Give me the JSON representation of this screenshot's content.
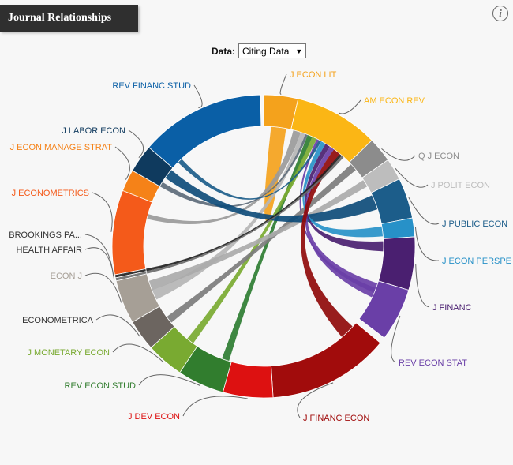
{
  "header": {
    "title": "Journal Relationships",
    "info_icon": "info-icon"
  },
  "controls": {
    "data_label": "Data:",
    "data_selected": "Citing Data"
  },
  "diagram": {
    "segments": [
      {
        "name": "J ECON LIT",
        "color": "#f4a21c",
        "start": 0,
        "end": 11,
        "label_side": "right"
      },
      {
        "name": "AM ECON REV",
        "color": "#fbb615",
        "start": 11,
        "end": 38,
        "label_side": "right"
      },
      {
        "name": "Q J ECON",
        "color": "#8c8c8c",
        "start": 38,
        "end": 46,
        "label_side": "right"
      },
      {
        "name": "J POLIT ECON",
        "color": "#bdbdbd",
        "start": 46,
        "end": 53,
        "label_side": "right"
      },
      {
        "name": "J PUBLIC ECON",
        "color": "#1c5d8a",
        "start": 53,
        "end": 66,
        "label_side": "right"
      },
      {
        "name": "J ECON PERSPE",
        "color": "#2791c8",
        "start": 66,
        "end": 72,
        "label_side": "right"
      },
      {
        "name": "J FINANC",
        "color": "#4a1f70",
        "start": 72,
        "end": 89,
        "label_side": "right"
      },
      {
        "name": "REV ECON STAT",
        "color": "#6a3fa7",
        "start": 89,
        "end": 106,
        "label_side": "right"
      },
      {
        "name": "J FINANC ECON",
        "color": "#a10c0c",
        "start": 108,
        "end": 147,
        "label_side": "right"
      },
      {
        "name": "J DEV ECON",
        "color": "#dd1111",
        "start": 147,
        "end": 163,
        "label_side": "left"
      },
      {
        "name": "REV ECON STUD",
        "color": "#317d2e",
        "start": 163,
        "end": 178,
        "label_side": "left"
      },
      {
        "name": "J MONETARY ECON",
        "color": "#79aa31",
        "start": 178,
        "end": 190,
        "label_side": "left"
      },
      {
        "name": "ECONOMETRICA",
        "color": "#6c6560",
        "start": 190,
        "end": 200,
        "label_side": "left"
      },
      {
        "name": "ECON J",
        "color": "#a69f96",
        "start": 200,
        "end": 214,
        "label_side": "left"
      },
      {
        "name": "HEALTH AFFAIR",
        "color": "#7a7a7a",
        "start": 214,
        "end": 215,
        "label_side": "left"
      },
      {
        "name": "BROOKINGS PA...",
        "color": "#333333",
        "start": 215,
        "end": 216,
        "label_side": "left"
      },
      {
        "name": "J ECONOMETRICS",
        "color": "#f45a1a",
        "start": 216,
        "end": 243,
        "label_side": "left"
      },
      {
        "name": "J ECON MANAGE STRAT",
        "color": "#f58218",
        "start": 243,
        "end": 250,
        "label_side": "left"
      },
      {
        "name": "J LABOR ECON",
        "color": "#0f3a5e",
        "start": 250,
        "end": 259,
        "label_side": "left"
      },
      {
        "name": "REV FINANC STUD",
        "color": "#0a5fa6",
        "start": 259,
        "end": 299,
        "label_side": "left"
      }
    ],
    "chords": [
      {
        "from": "J ECON LIT",
        "color": "#f4a21c",
        "a": [
          3,
          9
        ],
        "b": [
          3,
          9
        ],
        "self": true
      },
      {
        "from": "AM ECON REV",
        "color": "#9a9a9a",
        "a": [
          12,
          15
        ],
        "b": [
          236,
          238
        ]
      },
      {
        "from": "AM ECON REV",
        "color": "#b5b5b5",
        "a": [
          15,
          17
        ],
        "b": [
          203,
          207
        ]
      },
      {
        "from": "AM ECON REV",
        "color": "#5d6b7a",
        "a": [
          17,
          18
        ],
        "b": [
          250,
          252
        ]
      },
      {
        "from": "AM ECON REV",
        "color": "#2e7d32",
        "a": [
          18,
          20
        ],
        "b": [
          164,
          167
        ]
      },
      {
        "from": "AM ECON REV",
        "color": "#79aa31",
        "a": [
          20,
          22
        ],
        "b": [
          180,
          183
        ]
      },
      {
        "from": "AM ECON REV",
        "color": "#6a3fa7",
        "a": [
          22,
          23
        ],
        "b": [
          92,
          94
        ]
      },
      {
        "from": "AM ECON REV",
        "color": "#1c5d8a",
        "a": [
          23,
          24
        ],
        "b": [
          262,
          264
        ]
      },
      {
        "from": "Q J ECON",
        "color": "#7c7c7c",
        "a": [
          39,
          42
        ],
        "b": [
          192,
          195
        ]
      },
      {
        "from": "J POLIT ECON",
        "color": "#aaaaaa",
        "a": [
          47,
          50
        ],
        "b": [
          207,
          211
        ]
      },
      {
        "from": "J PUBLIC ECON",
        "color": "#0e4c7a",
        "a": [
          54,
          60
        ],
        "b": [
          254,
          258
        ]
      },
      {
        "from": "J ECON PERSPE",
        "color": "#2791c8",
        "a": [
          67,
          71
        ],
        "b": [
          24,
          26
        ]
      },
      {
        "from": "J FINANC",
        "color": "#4a1f70",
        "a": [
          73,
          77
        ],
        "b": [
          26,
          28
        ]
      },
      {
        "from": "REV ECON STAT",
        "color": "#6a3fa7",
        "a": [
          90,
          96
        ],
        "b": [
          28,
          30
        ]
      },
      {
        "from": "J FINANC ECON",
        "color": "#8f0a0a",
        "a": [
          110,
          116
        ],
        "b": [
          30,
          33
        ]
      },
      {
        "from": "J FINANC ECON",
        "color": "#222222",
        "a": [
          33,
          34
        ],
        "b": [
          215,
          216
        ]
      },
      {
        "from": "J DEV ECON",
        "color": "#6b6b6b",
        "a": [
          34,
          35
        ],
        "b": [
          214,
          215
        ]
      }
    ]
  }
}
